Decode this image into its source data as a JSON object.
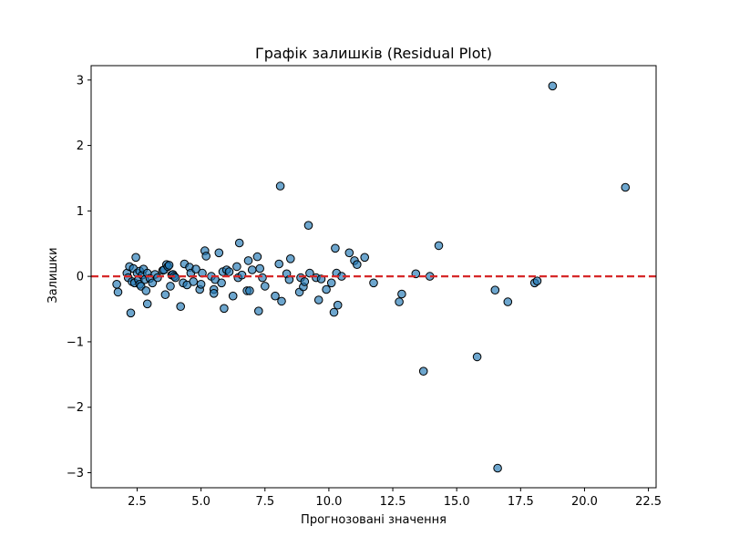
{
  "chart_data": {
    "type": "scatter",
    "title": "Графік залишків (Residual Plot)",
    "xlabel": "Прогнозовані значення",
    "ylabel": "Залишки",
    "xlim": [
      0.7,
      22.8
    ],
    "ylim": [
      -3.23,
      3.22
    ],
    "xticks": [
      2.5,
      5.0,
      7.5,
      10.0,
      12.5,
      15.0,
      17.5,
      20.0,
      22.5
    ],
    "yticks": [
      -3,
      -2,
      -1,
      0,
      1,
      2,
      3
    ],
    "xtick_labels": [
      "2.5",
      "5.0",
      "7.5",
      "10.0",
      "12.5",
      "15.0",
      "17.5",
      "20.0",
      "22.5"
    ],
    "ytick_labels": [
      "−3",
      "−2",
      "−1",
      "0",
      "1",
      "2",
      "3"
    ],
    "grid": false,
    "reference_line": {
      "y": 0,
      "style": "dashed",
      "color": "#d62728"
    },
    "point_color": "#1f77b4",
    "point_edge_color": "#000000",
    "points": [
      [
        1.7,
        -0.12
      ],
      [
        1.75,
        -0.24
      ],
      [
        2.1,
        0.05
      ],
      [
        2.15,
        -0.02
      ],
      [
        2.2,
        0.15
      ],
      [
        2.25,
        -0.56
      ],
      [
        2.3,
        -0.08
      ],
      [
        2.35,
        0.12
      ],
      [
        2.4,
        -0.1
      ],
      [
        2.45,
        0.29
      ],
      [
        2.5,
        0.05
      ],
      [
        2.55,
        -0.05
      ],
      [
        2.6,
        -0.12
      ],
      [
        2.6,
        0.08
      ],
      [
        2.65,
        -0.15
      ],
      [
        2.7,
        0.02
      ],
      [
        2.75,
        0.11
      ],
      [
        2.8,
        -0.05
      ],
      [
        2.85,
        -0.22
      ],
      [
        2.9,
        -0.42
      ],
      [
        2.9,
        0.05
      ],
      [
        3.0,
        -0.03
      ],
      [
        3.1,
        -0.1
      ],
      [
        3.2,
        0.03
      ],
      [
        3.3,
        -0.02
      ],
      [
        3.5,
        0.09
      ],
      [
        3.55,
        0.1
      ],
      [
        3.6,
        -0.28
      ],
      [
        3.65,
        0.18
      ],
      [
        3.7,
        0.15
      ],
      [
        3.75,
        0.17
      ],
      [
        3.8,
        -0.15
      ],
      [
        3.85,
        0.02
      ],
      [
        3.9,
        0.03
      ],
      [
        3.95,
        0.0
      ],
      [
        4.0,
        -0.02
      ],
      [
        4.2,
        -0.46
      ],
      [
        4.3,
        -0.1
      ],
      [
        4.35,
        0.19
      ],
      [
        4.45,
        -0.13
      ],
      [
        4.55,
        0.14
      ],
      [
        4.6,
        0.05
      ],
      [
        4.7,
        -0.08
      ],
      [
        4.8,
        0.11
      ],
      [
        4.95,
        -0.2
      ],
      [
        5.0,
        -0.12
      ],
      [
        5.05,
        0.05
      ],
      [
        5.15,
        0.39
      ],
      [
        5.2,
        0.31
      ],
      [
        5.4,
        0.0
      ],
      [
        5.5,
        -0.2
      ],
      [
        5.5,
        -0.26
      ],
      [
        5.55,
        -0.05
      ],
      [
        5.7,
        0.36
      ],
      [
        5.8,
        -0.1
      ],
      [
        5.85,
        0.07
      ],
      [
        5.9,
        -0.49
      ],
      [
        6.0,
        0.1
      ],
      [
        6.1,
        0.07
      ],
      [
        6.25,
        -0.3
      ],
      [
        6.4,
        0.15
      ],
      [
        6.45,
        -0.02
      ],
      [
        6.5,
        0.51
      ],
      [
        6.6,
        0.02
      ],
      [
        6.8,
        -0.22
      ],
      [
        6.85,
        0.24
      ],
      [
        6.9,
        -0.22
      ],
      [
        7.0,
        0.1
      ],
      [
        7.2,
        0.3
      ],
      [
        7.25,
        -0.53
      ],
      [
        7.3,
        0.12
      ],
      [
        7.4,
        -0.02
      ],
      [
        7.5,
        -0.15
      ],
      [
        7.9,
        -0.3
      ],
      [
        8.05,
        0.19
      ],
      [
        8.1,
        1.38
      ],
      [
        8.15,
        -0.38
      ],
      [
        8.35,
        0.04
      ],
      [
        8.45,
        -0.05
      ],
      [
        8.5,
        0.27
      ],
      [
        8.85,
        -0.24
      ],
      [
        8.9,
        -0.02
      ],
      [
        9.0,
        -0.16
      ],
      [
        9.05,
        -0.08
      ],
      [
        9.2,
        0.78
      ],
      [
        9.25,
        0.05
      ],
      [
        9.5,
        -0.02
      ],
      [
        9.6,
        -0.36
      ],
      [
        9.7,
        -0.04
      ],
      [
        9.9,
        -0.2
      ],
      [
        10.1,
        -0.1
      ],
      [
        10.2,
        -0.55
      ],
      [
        10.25,
        0.43
      ],
      [
        10.3,
        0.05
      ],
      [
        10.35,
        -0.44
      ],
      [
        10.5,
        0.0
      ],
      [
        10.8,
        0.36
      ],
      [
        11.0,
        0.24
      ],
      [
        11.1,
        0.18
      ],
      [
        11.4,
        0.29
      ],
      [
        11.75,
        -0.1
      ],
      [
        12.75,
        -0.39
      ],
      [
        12.85,
        -0.27
      ],
      [
        13.4,
        0.04
      ],
      [
        13.7,
        -1.45
      ],
      [
        13.95,
        0.0
      ],
      [
        14.3,
        0.47
      ],
      [
        15.8,
        -1.23
      ],
      [
        16.5,
        -0.21
      ],
      [
        16.6,
        -2.93
      ],
      [
        17.0,
        -0.39
      ],
      [
        18.05,
        -0.1
      ],
      [
        18.15,
        -0.07
      ],
      [
        18.75,
        2.91
      ],
      [
        21.6,
        1.36
      ]
    ]
  }
}
